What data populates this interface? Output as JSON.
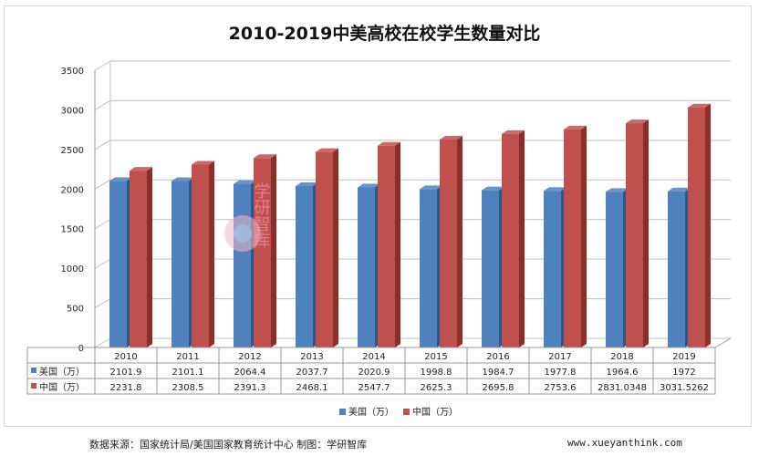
{
  "chart_data": {
    "type": "bar",
    "title": "2010-2019中美高校在校学生数量对比",
    "categories": [
      "2010",
      "2011",
      "2012",
      "2013",
      "2014",
      "2015",
      "2016",
      "2017",
      "2018",
      "2019"
    ],
    "series": [
      {
        "name": "美国（万）",
        "color": "#4f81bd",
        "side_color": "#2f5689",
        "values": [
          2101.9,
          2101.1,
          2064.4,
          2037.7,
          2020.9,
          1998.8,
          1984.7,
          1977.8,
          1964.6,
          1972
        ],
        "labels": [
          "2101.9",
          "2101.1",
          "2064.4",
          "2037.7",
          "2020.9",
          "1998.8",
          "1984.7",
          "1977.8",
          "1964.6",
          "1972"
        ]
      },
      {
        "name": "中国（万）",
        "color": "#c0504d",
        "side_color": "#8c2d2a",
        "values": [
          2231.8,
          2308.5,
          2391.3,
          2468.1,
          2547.7,
          2625.3,
          2695.8,
          2753.6,
          2831.0348,
          3031.5262
        ],
        "labels": [
          "2231.8",
          "2308.5",
          "2391.3",
          "2468.1",
          "2547.7",
          "2625.3",
          "2695.8",
          "2753.6",
          "2831.0348",
          "3031.5262"
        ]
      }
    ],
    "ylim": [
      0,
      3500
    ],
    "yticks": [
      "0",
      "500",
      "1000",
      "1500",
      "2000",
      "2500",
      "3000",
      "3500"
    ],
    "grid": true,
    "legend": "bottom",
    "table": true
  },
  "footer": {
    "source": "数据来源：国家统计局/美国国家教育统计中心 制图：学研智库",
    "site": "www.xueyanthink.com"
  },
  "watermark": {
    "text": "学研智库",
    "subtext": "XUE YAN ZHI KU"
  }
}
